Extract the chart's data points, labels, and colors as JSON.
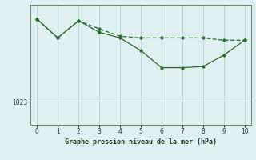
{
  "line1_x": [
    0,
    1,
    2,
    3,
    4,
    5,
    6,
    7,
    8,
    9,
    10
  ],
  "line1_y": [
    1037.5,
    1034.2,
    1037.2,
    1035.8,
    1034.5,
    1034.2,
    1034.2,
    1034.2,
    1034.2,
    1033.8,
    1033.8
  ],
  "line2_x": [
    0,
    1,
    2,
    3,
    4,
    5,
    6,
    7,
    8,
    9,
    10
  ],
  "line2_y": [
    1037.5,
    1034.2,
    1037.2,
    1035.2,
    1034.2,
    1032.0,
    1029.0,
    1029.0,
    1029.2,
    1031.2,
    1033.8
  ],
  "line_color": "#2d6a2d",
  "bg_color": "#dff0f0",
  "grid_color": "#b8d8d8",
  "xlabel": "Graphe pression niveau de la mer (hPa)",
  "ytick_label": "1023",
  "ytick_value": 1023,
  "ylim": [
    1019,
    1040
  ],
  "xlim": [
    -0.3,
    10.3
  ],
  "xticks": [
    0,
    1,
    2,
    3,
    4,
    5,
    6,
    7,
    8,
    9,
    10
  ]
}
